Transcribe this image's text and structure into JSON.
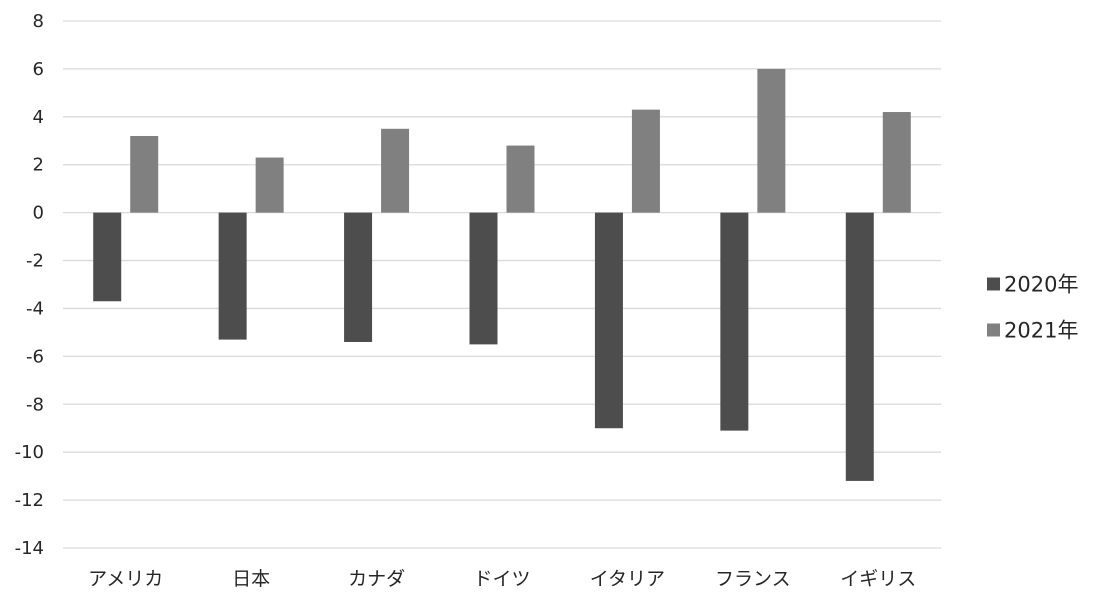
{
  "chart_data": {
    "type": "bar",
    "categories": [
      "アメリカ",
      "日本",
      "カナダ",
      "ドイツ",
      "イタリア",
      "フランス",
      "イギリス"
    ],
    "series": [
      {
        "name": "2020年",
        "values": [
          -3.7,
          -5.3,
          -5.4,
          -5.5,
          -9.0,
          -9.1,
          -11.2
        ],
        "color": "#4d4d4d"
      },
      {
        "name": "2021年",
        "values": [
          3.2,
          2.3,
          3.5,
          2.8,
          4.3,
          6.0,
          4.2
        ],
        "color": "#808080"
      }
    ],
    "yticks": [
      8,
      6,
      4,
      2,
      0,
      -2,
      -4,
      -6,
      -8,
      -10,
      -12,
      -14
    ],
    "ylim": [
      -14,
      8
    ],
    "title": "",
    "xlabel": "",
    "ylabel": "",
    "grid": true,
    "legend_position": "right",
    "gridline_color": "#d9d9d9",
    "text_color": "#262626"
  }
}
